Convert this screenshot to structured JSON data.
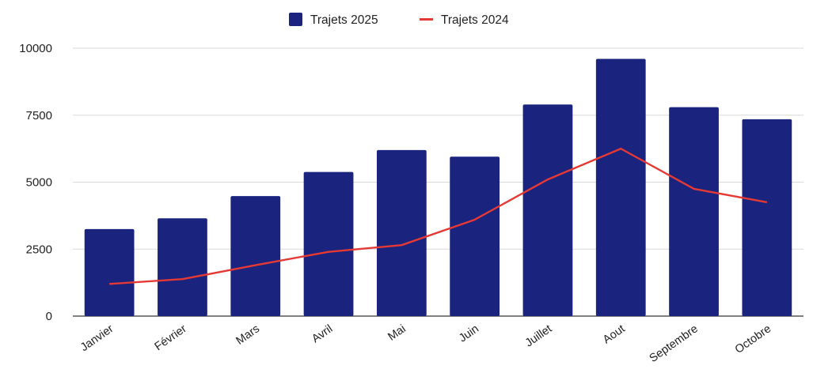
{
  "chart_data": {
    "type": "bar",
    "title": "",
    "xlabel": "",
    "ylabel": "",
    "categories": [
      "Janvier",
      "Février",
      "Mars",
      "Avril",
      "Mai",
      "Juin",
      "Juillet",
      "Aout",
      "Septembre",
      "Octobre"
    ],
    "series": [
      {
        "name": "Trajets 2025",
        "type": "bar",
        "color": "#1a237e",
        "values": [
          3250,
          3650,
          4480,
          5380,
          6200,
          5950,
          7900,
          9600,
          7800,
          7350
        ]
      },
      {
        "name": "Trajets 2024",
        "type": "line",
        "color": "#e53935",
        "values": [
          1200,
          1380,
          1900,
          2400,
          2650,
          3600,
          5100,
          6250,
          4750,
          4250
        ]
      }
    ],
    "ylim": [
      0,
      10000
    ],
    "yticks": [
      0,
      2500,
      5000,
      7500,
      10000
    ],
    "grid": true,
    "legend_position": "top"
  }
}
